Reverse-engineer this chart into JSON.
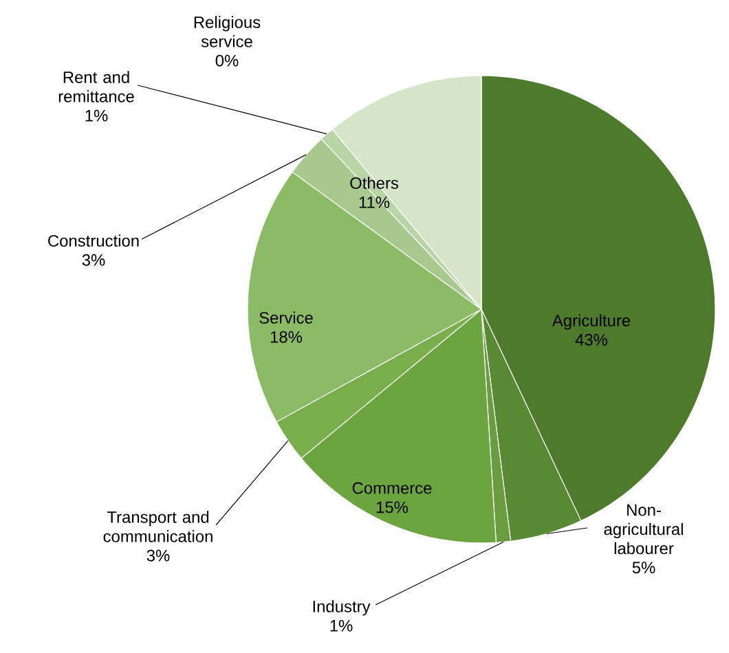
{
  "chart_data": {
    "type": "pie",
    "categories": [
      "Agriculture",
      "Non-agricultural labourer",
      "Industry",
      "Commerce",
      "Transport and communication",
      "Service",
      "Construction",
      "Rent and remittance",
      "Religious service",
      "Others"
    ],
    "values": [
      43,
      5,
      1,
      15,
      3,
      18,
      3,
      1,
      0,
      11
    ],
    "value_labels": [
      "43%",
      "5%",
      "1%",
      "15%",
      "3%",
      "18%",
      "3%",
      "1%",
      "0%",
      "11%"
    ],
    "colors": [
      "#4e7a2c",
      "#578a33",
      "#6a9d3f",
      "#6ca43f",
      "#78ae4c",
      "#8cbb66",
      "#a7c98e",
      "#b9d5a5",
      "#c5dcb5",
      "#d5e5c9"
    ]
  }
}
